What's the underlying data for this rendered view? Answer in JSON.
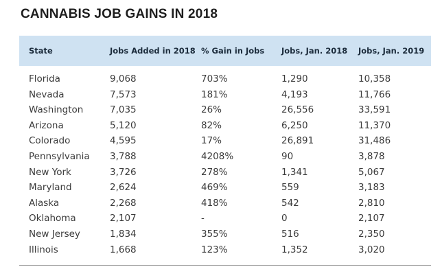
{
  "title": "CANNABIS JOB GAINS IN 2018",
  "columns": [
    "State",
    "Jobs Added in 2018",
    "% Gain in Jobs",
    "Jobs, Jan. 2018",
    "Jobs, Jan. 2019"
  ],
  "rows": [
    [
      "Florida",
      "9,068",
      "703%",
      "1,290",
      "10,358"
    ],
    [
      "Nevada",
      "7,573",
      "181%",
      "4,193",
      "11,766"
    ],
    [
      "Washington",
      "7,035",
      "26%",
      "26,556",
      "33,591"
    ],
    [
      "Arizona",
      "5,120",
      "82%",
      "6,250",
      "11,370"
    ],
    [
      "Colorado",
      "4,595",
      "17%",
      "26,891",
      "31,486"
    ],
    [
      "Pennsylvania",
      "3,788",
      "4208%",
      "90",
      "3,878"
    ],
    [
      "New York",
      "3,726",
      "278%",
      "1,341",
      "5,067"
    ],
    [
      "Maryland",
      "2,624",
      "469%",
      "559",
      "3,183"
    ],
    [
      "Alaska",
      "2,268",
      "418%",
      "542",
      "2,810"
    ],
    [
      "Oklahoma",
      "2,107",
      "-",
      "0",
      "2,107"
    ],
    [
      "New Jersey",
      "1,834",
      "355%",
      "516",
      "2,350"
    ],
    [
      "Illinois",
      "1,668",
      "123%",
      "1,352",
      "3,020"
    ]
  ],
  "colors": {
    "header_bg": "#cfe2f2",
    "rule": "#9a9a9a"
  }
}
